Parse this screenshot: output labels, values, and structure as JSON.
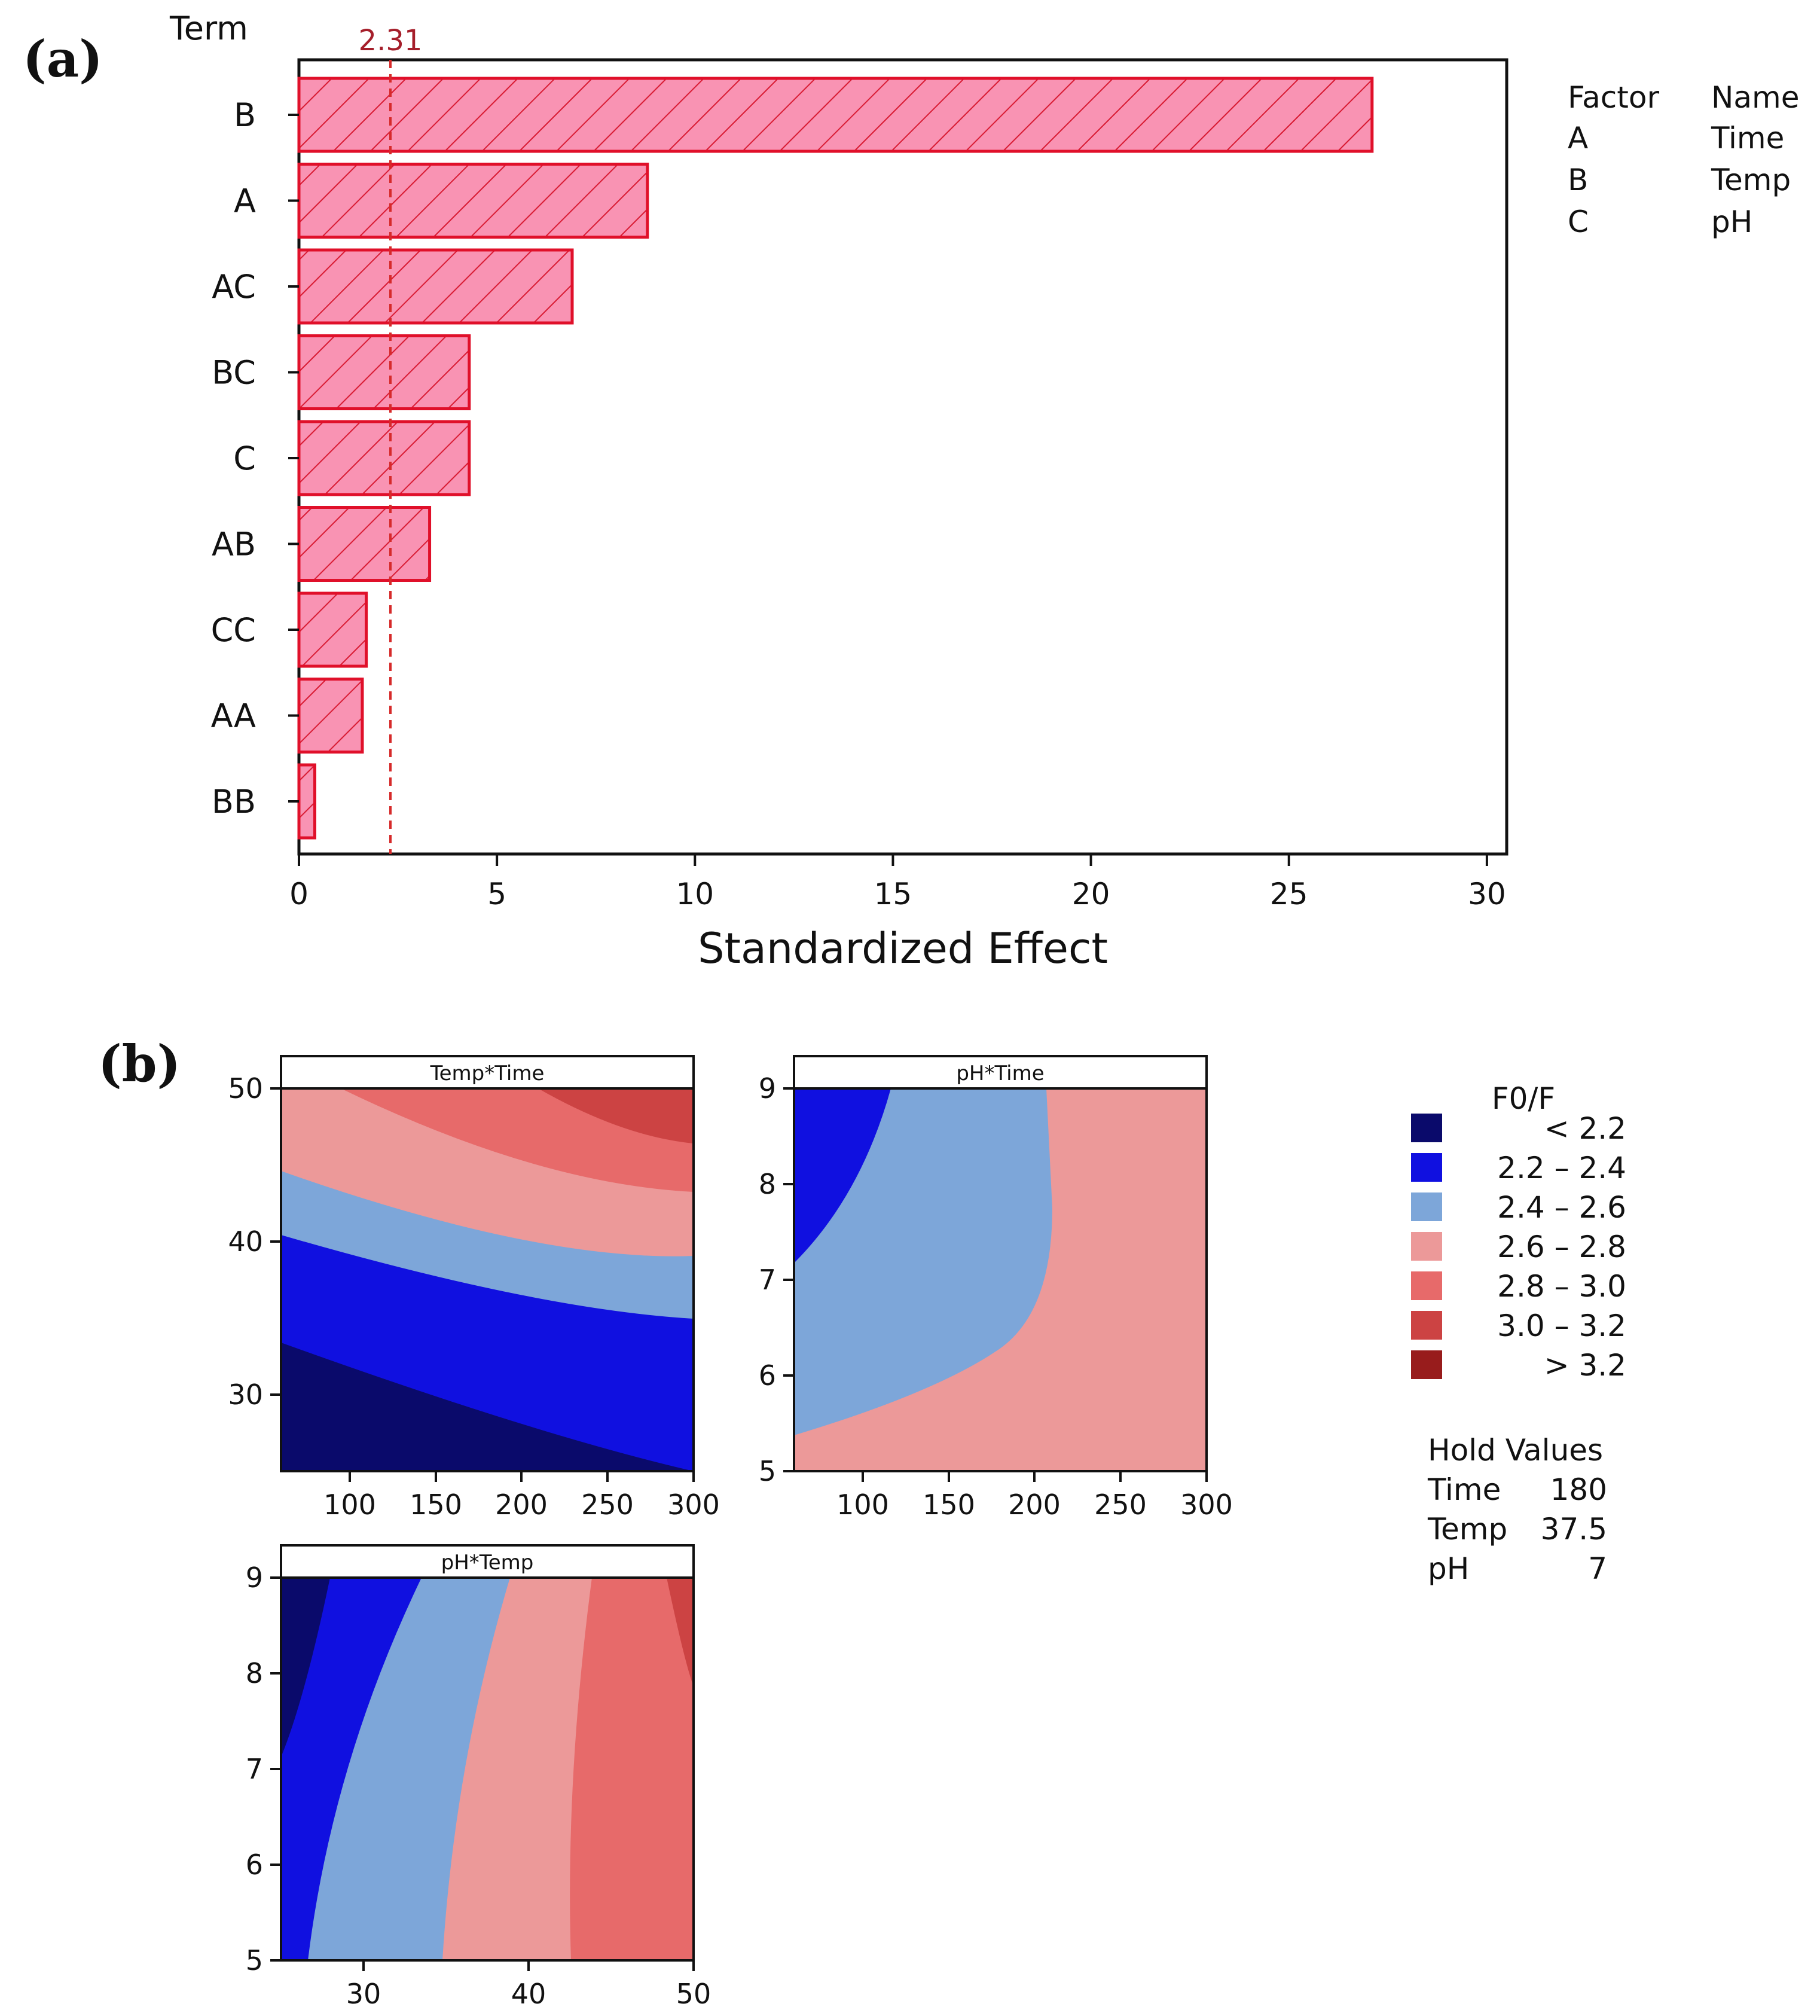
{
  "panel_a": {
    "label": "(a)",
    "term_header": "Term",
    "ref_line_label": "2.31"
  },
  "factor_legend": {
    "header_factor": "Factor",
    "header_name": "Name",
    "rows": [
      {
        "factor": "A",
        "name": "Time"
      },
      {
        "factor": "B",
        "name": "Temp"
      },
      {
        "factor": "C",
        "name": "pH"
      }
    ]
  },
  "panel_b": {
    "label": "(b)",
    "legend_title": "F0/F",
    "legend_items": [
      {
        "range": "< 2.2",
        "color": "#0a0a6b"
      },
      {
        "range": "2.2  –  2.4",
        "color": "#1010e0"
      },
      {
        "range": "2.4  –  2.6",
        "color": "#7da6d9"
      },
      {
        "range": "2.6  –  2.8",
        "color": "#ec9999"
      },
      {
        "range": "2.8  –  3.0",
        "color": "#e76a6a"
      },
      {
        "range": "3.0  –  3.2",
        "color": "#cc4343"
      },
      {
        "range": "> 3.2",
        "color": "#981c1c"
      }
    ],
    "hold_values": {
      "title": "Hold Values",
      "rows": [
        {
          "name": "Time",
          "value": "180"
        },
        {
          "name": "Temp",
          "value": "37.5"
        },
        {
          "name": "pH",
          "value": "7"
        }
      ]
    },
    "contours": [
      {
        "title": "Temp*Time",
        "x_ticks": [
          "100",
          "150",
          "200",
          "250",
          "300"
        ],
        "y_ticks": [
          "30",
          "40",
          "50"
        ]
      },
      {
        "title": "pH*Time",
        "x_ticks": [
          "100",
          "150",
          "200",
          "250",
          "300"
        ],
        "y_ticks": [
          "5",
          "6",
          "7",
          "8",
          "9"
        ]
      },
      {
        "title": "pH*Temp",
        "x_ticks": [
          "30",
          "40",
          "50"
        ],
        "y_ticks": [
          "5",
          "6",
          "7",
          "8",
          "9"
        ]
      }
    ]
  },
  "chart_data": [
    {
      "type": "bar",
      "orientation": "horizontal",
      "title": "",
      "xlabel": "Standardized Effect",
      "ylabel": "Term",
      "categories": [
        "B",
        "A",
        "AC",
        "BC",
        "C",
        "AB",
        "CC",
        "AA",
        "BB"
      ],
      "values": [
        27.1,
        8.8,
        6.9,
        4.3,
        4.3,
        3.3,
        1.7,
        1.6,
        0.4
      ],
      "xlim": [
        0,
        30.5
      ],
      "x_ticks": [
        "0",
        "5",
        "10",
        "15",
        "20",
        "25",
        "30"
      ],
      "reference_line": 2.31,
      "bar_color": "#f993b3",
      "edge_color": "#e0102a"
    },
    {
      "type": "contour",
      "title": "Temp*Time",
      "x_variable": "Time",
      "y_variable": "Temp",
      "xlim": [
        60,
        300
      ],
      "ylim": [
        25,
        50
      ],
      "legend_title": "F0/F",
      "levels": [
        2.2,
        2.4,
        2.6,
        2.8,
        3.0,
        3.2
      ]
    },
    {
      "type": "contour",
      "title": "pH*Time",
      "x_variable": "Time",
      "y_variable": "pH",
      "xlim": [
        60,
        300
      ],
      "ylim": [
        5,
        9
      ],
      "legend_title": "F0/F",
      "levels": [
        2.2,
        2.4,
        2.6,
        2.8,
        3.0,
        3.2
      ]
    },
    {
      "type": "contour",
      "title": "pH*Temp",
      "x_variable": "Temp",
      "y_variable": "pH",
      "xlim": [
        25,
        50
      ],
      "ylim": [
        5,
        9
      ],
      "legend_title": "F0/F",
      "levels": [
        2.2,
        2.4,
        2.6,
        2.8,
        3.0,
        3.2
      ]
    }
  ]
}
